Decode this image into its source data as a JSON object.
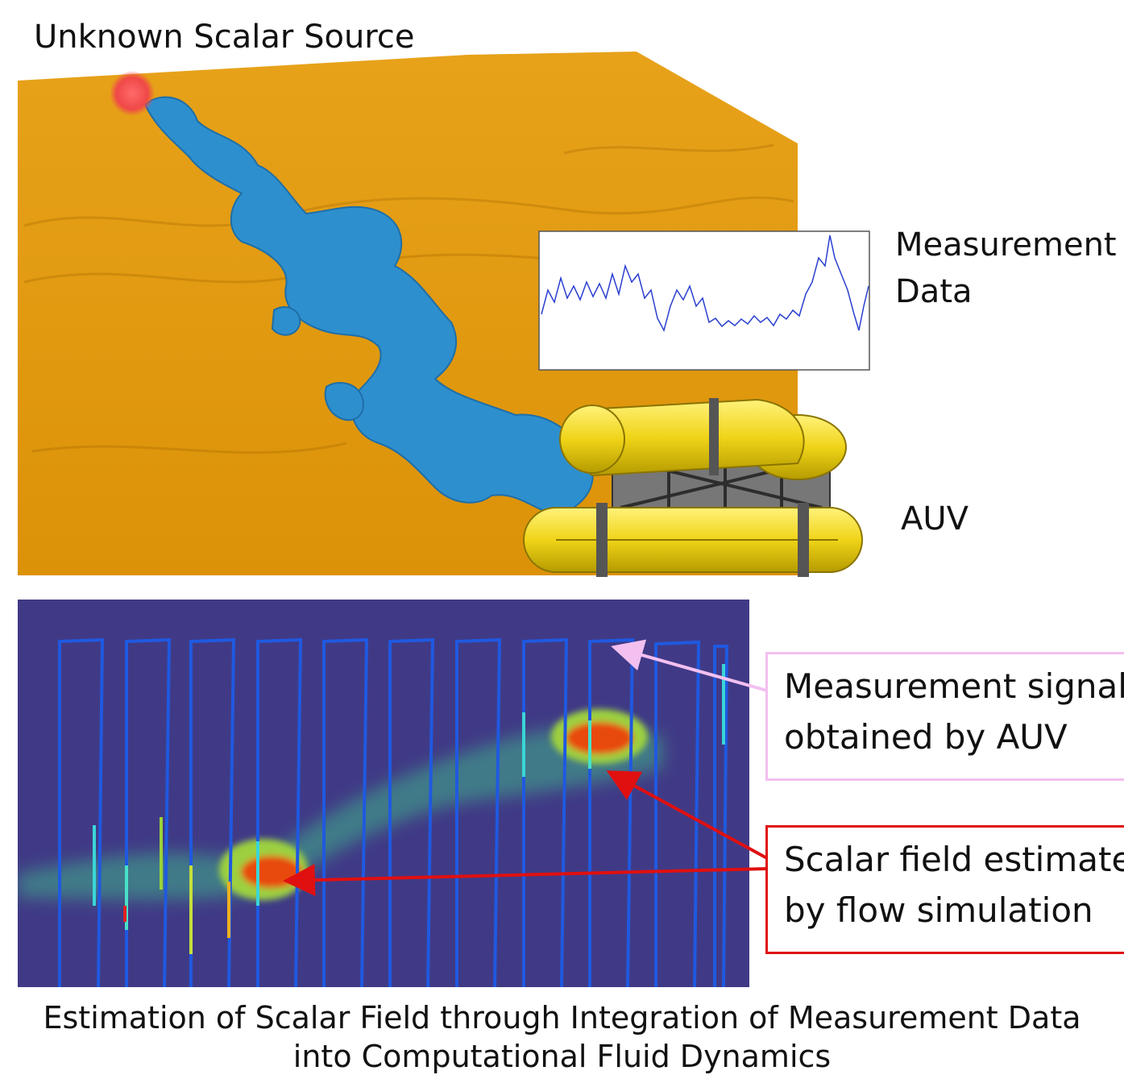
{
  "labels": {
    "source": "Unknown Scalar Source",
    "measurement": [
      "Measurement",
      "Data"
    ],
    "auv": "AUV"
  },
  "callouts": {
    "signal": [
      "Measurement signal",
      "obtained by AUV"
    ],
    "estimate": [
      "Scalar field estimated",
      "by flow simulation"
    ]
  },
  "caption": [
    "Estimation of Scalar Field through Integration of Measurement Data",
    "into Computational Fluid Dynamics"
  ],
  "colors": {
    "seabed": "#e39a10",
    "plume": "#2e8fce",
    "source_dot": "#f04848",
    "signal_line": "#2a3fd0",
    "heatmap_bg": "#403a86",
    "signal_callout_border": "#f3c0f0",
    "estimate_callout_border": "#e01010",
    "auv_body": "#f2dc1a"
  }
}
